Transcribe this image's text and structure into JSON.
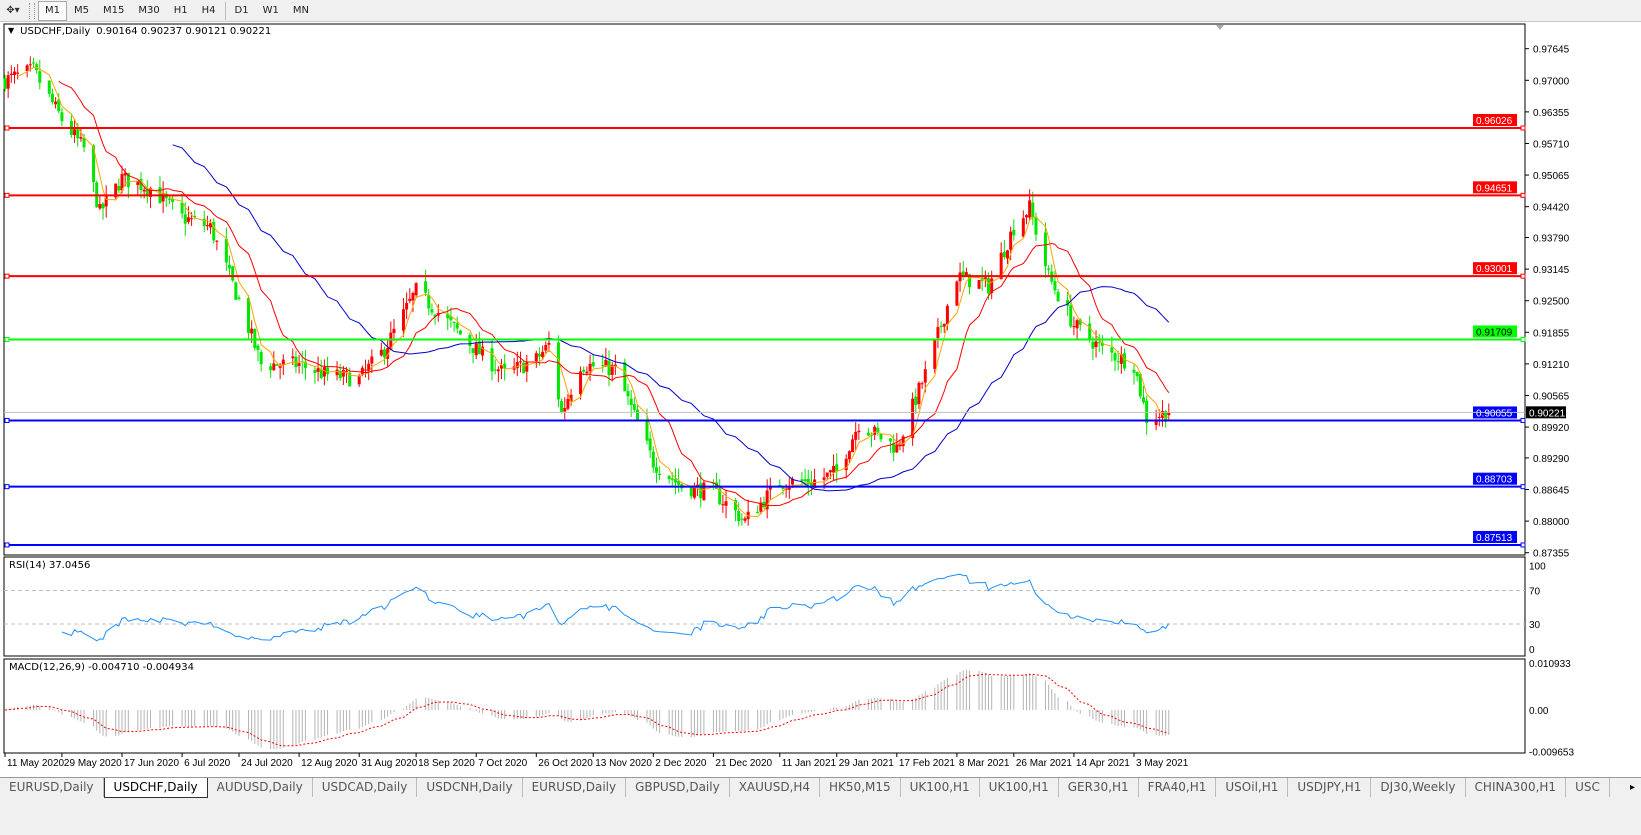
{
  "toolbar": {
    "icons": [
      "crosshair-dropdown-icon"
    ],
    "timeframes": [
      "M1",
      "M5",
      "M15",
      "M30",
      "H1",
      "H4",
      "D1",
      "W1",
      "MN"
    ],
    "active_timeframe": "M1",
    "highlighted_timeframe": "D1"
  },
  "chart": {
    "header": "USDCHF,Daily",
    "ohlc": "0.90164 0.90237 0.90121 0.90221",
    "current_price": "0.90221",
    "colors": {
      "bull_candle": "#ff0000",
      "bear_candle": "#00e600",
      "ma_fast": "#ffa500",
      "ma_mid": "#ff0000",
      "ma_slow": "#0000cc",
      "rsi": "#1e90ff",
      "macd_signal": "#ff0000",
      "macd_hist": "#b4b4b4"
    },
    "price_axis": [
      "0.97645",
      "0.97000",
      "0.96355",
      "0.95710",
      "0.95065",
      "0.94420",
      "0.93790",
      "0.93145",
      "0.92500",
      "0.91855",
      "0.91210",
      "0.90565",
      "0.89920",
      "0.89290",
      "0.88645",
      "0.88000",
      "0.87355"
    ],
    "hlines": [
      {
        "price": "0.96026",
        "color": "#ff0000"
      },
      {
        "price": "0.94651",
        "color": "#ff0000"
      },
      {
        "price": "0.93001",
        "color": "#ff0000"
      },
      {
        "price": "0.91709",
        "color": "#00ff00"
      },
      {
        "price": "0.90055",
        "color": "#0000ff"
      },
      {
        "price": "0.88703",
        "color": "#0000ff"
      },
      {
        "price": "0.87513",
        "color": "#0000ff"
      }
    ],
    "date_axis": [
      "11 May 2020",
      "29 May 2020",
      "17 Jun 2020",
      "6 Jul 2020",
      "24 Jul 2020",
      "12 Aug 2020",
      "31 Aug 2020",
      "18 Sep 2020",
      "7 Oct 2020",
      "26 Oct 2020",
      "13 Nov 2020",
      "2 Dec 2020",
      "21 Dec 2020",
      "11 Jan 2021",
      "29 Jan 2021",
      "17 Feb 2021",
      "8 Mar 2021",
      "26 Mar 2021",
      "14 Apr 2021",
      "3 May 2021"
    ]
  },
  "rsi": {
    "label": "RSI(14) 37.0456",
    "axis": [
      "100",
      "70",
      "30",
      "0"
    ]
  },
  "macd": {
    "label": "MACD(12,26,9) -0.004710 -0.004934",
    "axis": [
      "0.010933",
      "0.00",
      "-0.009653"
    ]
  },
  "chart_data": {
    "type": "candlestick",
    "symbol": "USDCHF",
    "timeframe": "Daily",
    "ylim": [
      0.87355,
      0.97645
    ],
    "approx_close_path": [
      [
        "2020-05-11",
        0.97
      ],
      [
        "2020-05-20",
        0.972
      ],
      [
        "2020-05-29",
        0.962
      ],
      [
        "2020-06-05",
        0.956
      ],
      [
        "2020-06-10",
        0.943
      ],
      [
        "2020-06-17",
        0.95
      ],
      [
        "2020-06-26",
        0.948
      ],
      [
        "2020-07-06",
        0.942
      ],
      [
        "2020-07-15",
        0.94
      ],
      [
        "2020-07-24",
        0.925
      ],
      [
        "2020-07-31",
        0.912
      ],
      [
        "2020-08-12",
        0.912
      ],
      [
        "2020-08-20",
        0.91
      ],
      [
        "2020-08-31",
        0.909
      ],
      [
        "2020-09-08",
        0.915
      ],
      [
        "2020-09-18",
        0.927
      ],
      [
        "2020-10-07",
        0.915
      ],
      [
        "2020-10-16",
        0.91
      ],
      [
        "2020-10-26",
        0.913
      ],
      [
        "2020-10-30",
        0.916
      ],
      [
        "2020-11-03",
        0.902
      ],
      [
        "2020-11-09",
        0.912
      ],
      [
        "2020-11-20",
        0.911
      ],
      [
        "2020-12-02",
        0.892
      ],
      [
        "2020-12-11",
        0.887
      ],
      [
        "2020-12-21",
        0.886
      ],
      [
        "2020-12-31",
        0.88
      ],
      [
        "2021-01-11",
        0.888
      ],
      [
        "2021-01-21",
        0.888
      ],
      [
        "2021-01-29",
        0.89
      ],
      [
        "2021-02-05",
        0.9
      ],
      [
        "2021-02-17",
        0.895
      ],
      [
        "2021-02-26",
        0.91
      ],
      [
        "2021-03-08",
        0.93
      ],
      [
        "2021-03-18",
        0.928
      ],
      [
        "2021-03-26",
        0.94
      ],
      [
        "2021-03-31",
        0.944
      ],
      [
        "2021-04-06",
        0.93
      ],
      [
        "2021-04-14",
        0.92
      ],
      [
        "2021-04-23",
        0.915
      ],
      [
        "2021-05-03",
        0.912
      ],
      [
        "2021-05-07",
        0.901
      ],
      [
        "2021-05-14",
        0.90221
      ]
    ]
  },
  "tabs": {
    "items": [
      "EURUSD,Daily",
      "USDCHF,Daily",
      "AUDUSD,Daily",
      "USDCAD,Daily",
      "USDCNH,Daily",
      "EURUSD,Daily",
      "GBPUSD,Daily",
      "XAUUSD,H4",
      "HK50,M15",
      "UK100,H1",
      "UK100,H1",
      "GER30,H1",
      "FRA40,H1",
      "USOil,H1",
      "USDJPY,H1",
      "DJ30,Weekly",
      "CHINA300,H1",
      "USC"
    ],
    "active": 1,
    "scroll_right": "▸"
  }
}
